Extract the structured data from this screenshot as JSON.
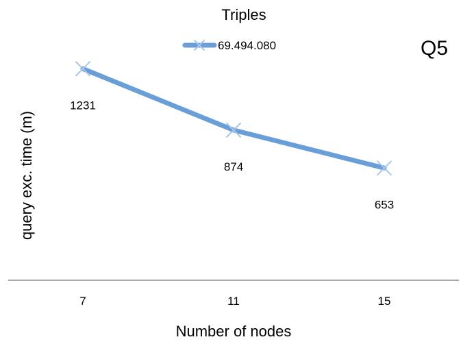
{
  "chart_data": {
    "type": "line",
    "title": "Triples",
    "badge": "Q5",
    "xlabel": "Number of nodes",
    "ylabel": "query exc. time (m)",
    "categories": [
      "7",
      "11",
      "15"
    ],
    "series": [
      {
        "name": "69.494.080",
        "values": [
          1231,
          874,
          653
        ],
        "color": "#6a9ed8",
        "markerColor": "#a9c6ea"
      }
    ],
    "data_labels": [
      "1231",
      "874",
      "653"
    ],
    "ylim": [
      0,
      1400
    ],
    "grid": false,
    "legend_position": "top-center"
  }
}
